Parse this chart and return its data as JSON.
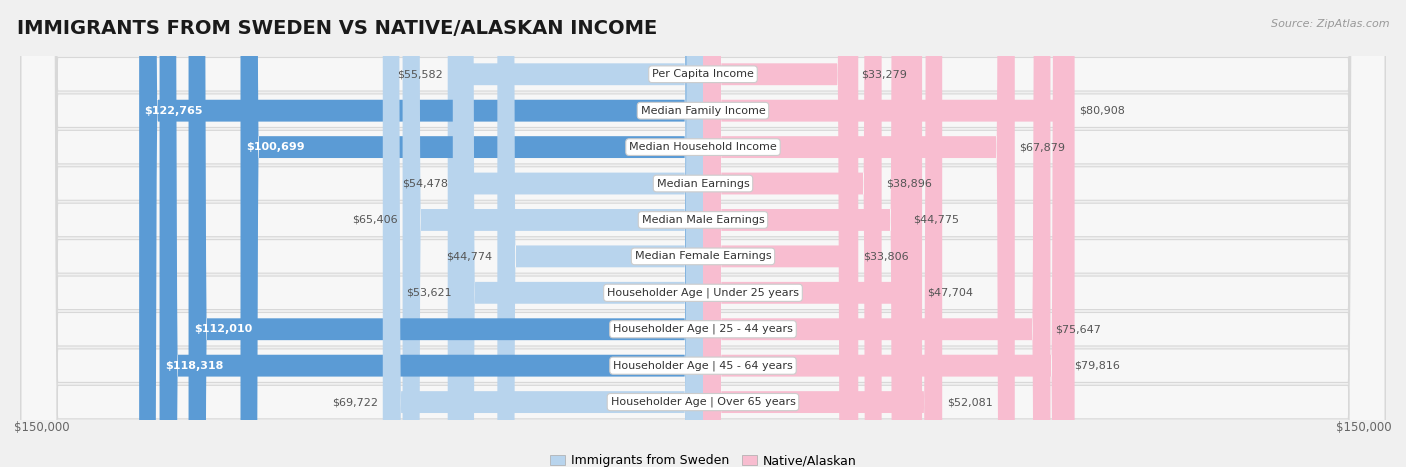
{
  "title": "IMMIGRANTS FROM SWEDEN VS NATIVE/ALASKAN INCOME",
  "source": "Source: ZipAtlas.com",
  "categories": [
    "Per Capita Income",
    "Median Family Income",
    "Median Household Income",
    "Median Earnings",
    "Median Male Earnings",
    "Median Female Earnings",
    "Householder Age | Under 25 years",
    "Householder Age | 25 - 44 years",
    "Householder Age | 45 - 64 years",
    "Householder Age | Over 65 years"
  ],
  "sweden_values": [
    55582,
    122765,
    100699,
    54478,
    65406,
    44774,
    53621,
    112010,
    118318,
    69722
  ],
  "native_values": [
    33279,
    80908,
    67879,
    38896,
    44775,
    33806,
    47704,
    75647,
    79816,
    52081
  ],
  "max_value": 150000,
  "sweden_color_light": "#b8d4ed",
  "sweden_color_dark": "#5b9bd5",
  "native_color_light": "#f8bdd0",
  "native_color_dark": "#e85d8a",
  "background_color": "#f0f0f0",
  "row_bg_color": "#f7f7f7",
  "row_border_color": "#d8d8d8",
  "label_dark_threshold": 90000,
  "legend_sweden": "Immigrants from Sweden",
  "legend_native": "Native/Alaskan",
  "x_label_left": "$150,000",
  "x_label_right": "$150,000",
  "title_fontsize": 14,
  "source_fontsize": 8,
  "bar_label_fontsize": 8,
  "cat_label_fontsize": 8,
  "legend_fontsize": 9,
  "axis_label_fontsize": 8.5
}
